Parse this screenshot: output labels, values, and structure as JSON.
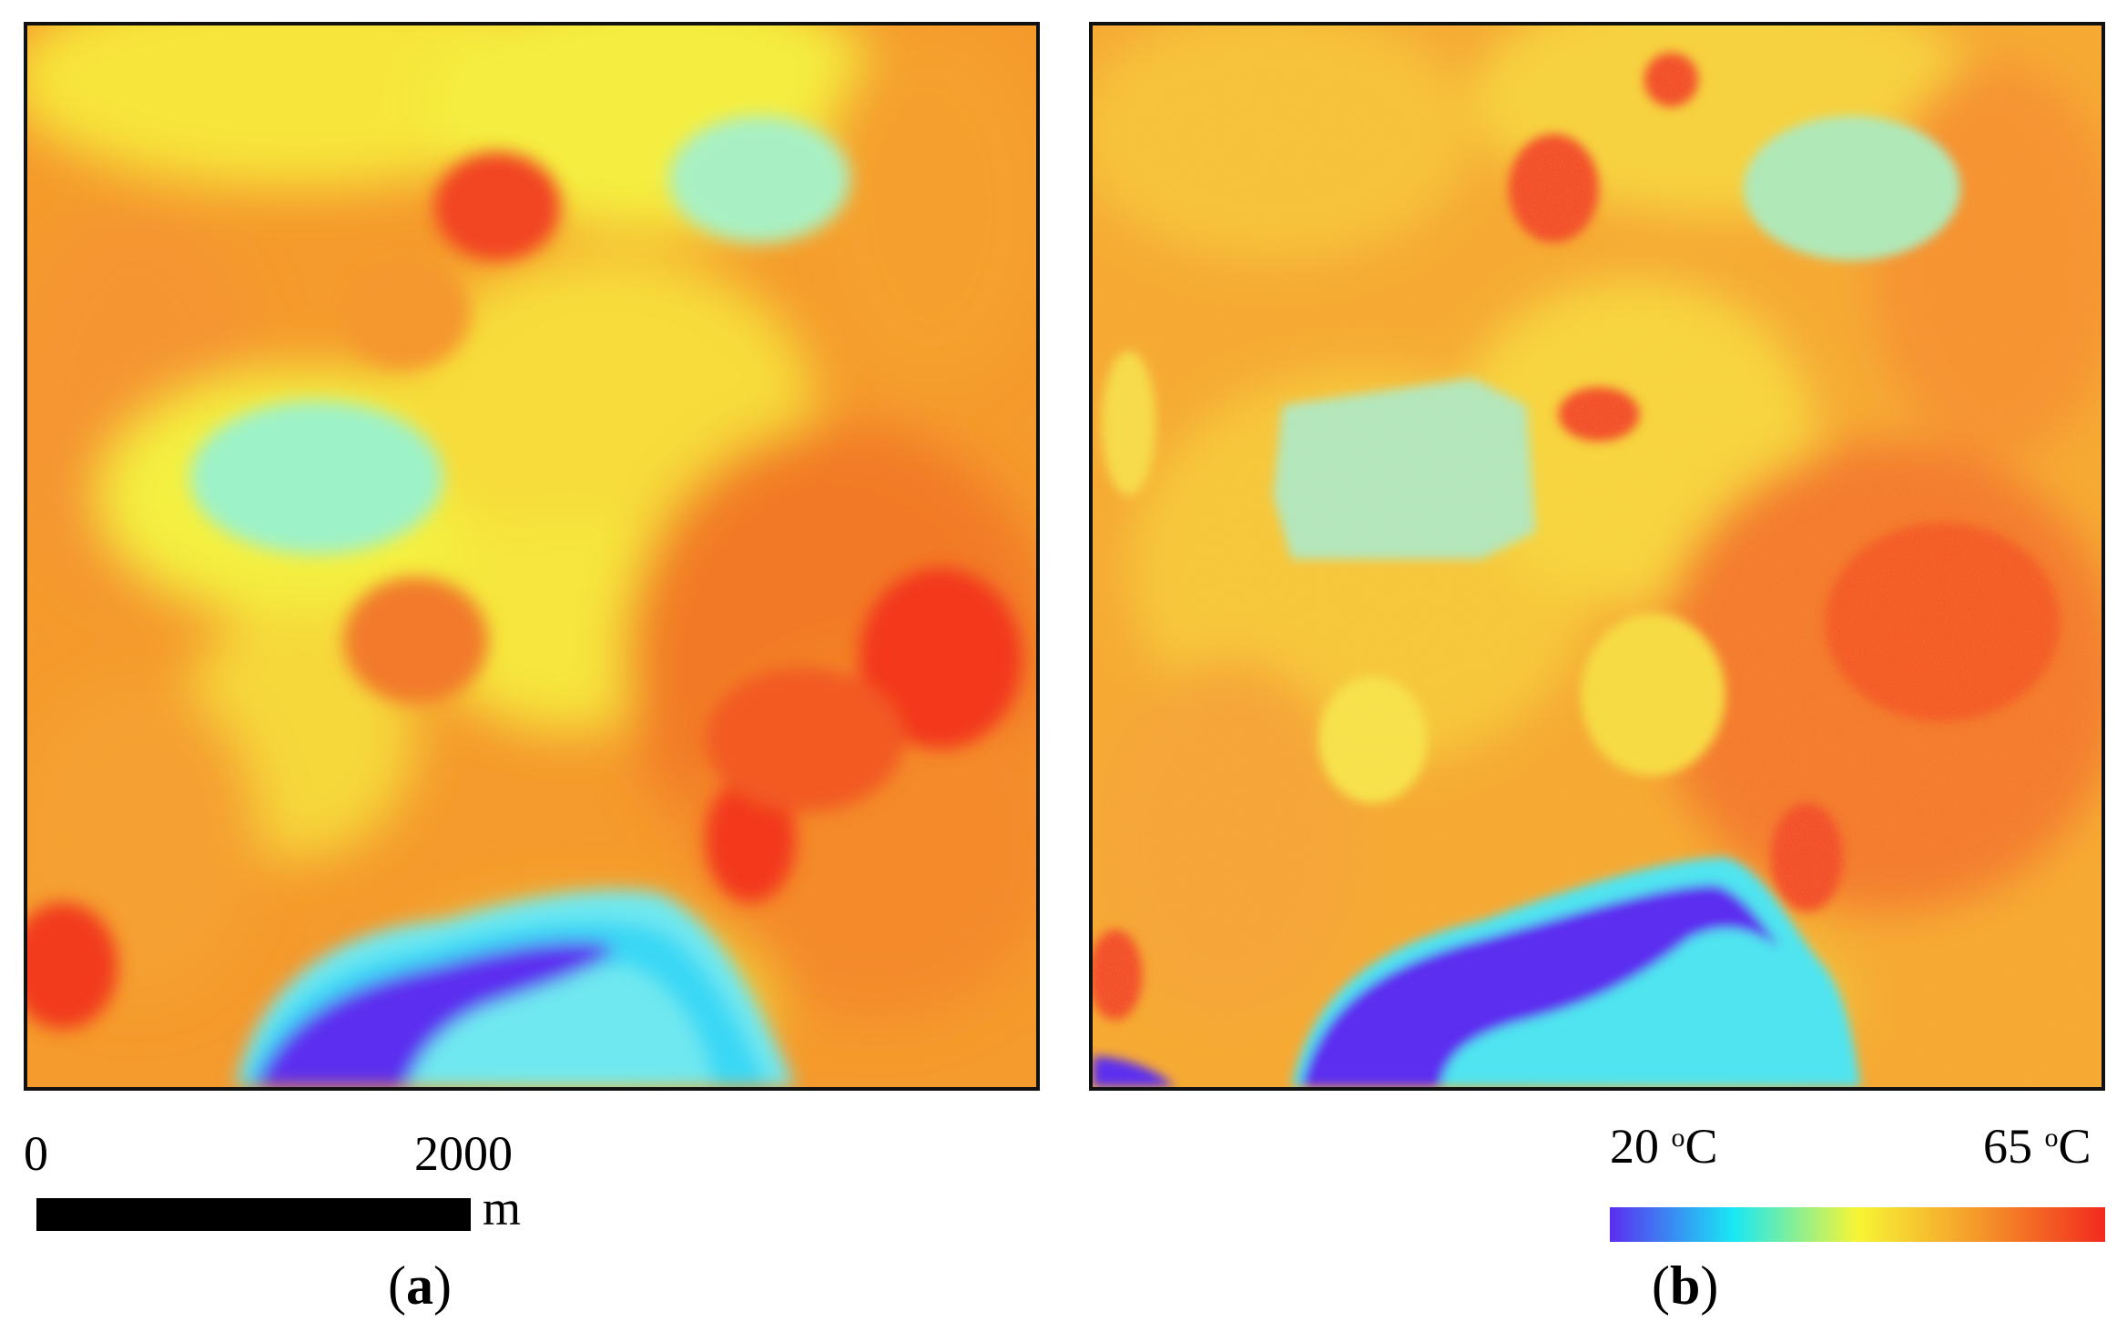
{
  "panels": [
    {
      "label_open": "(",
      "label_letter": "a",
      "label_close": ")"
    },
    {
      "label_open": "(",
      "label_letter": "b",
      "label_close": ")"
    }
  ],
  "scale_bar": {
    "zero_label": "0",
    "max_label": "2000",
    "unit": "m"
  },
  "legend": {
    "min_value": "20",
    "max_value": "65",
    "unit_superscript": "o",
    "unit_letter": "C",
    "colors": [
      "#5b2ef0",
      "#19e8f5",
      "#f7f534",
      "#f5962a",
      "#f22a1e"
    ]
  }
}
